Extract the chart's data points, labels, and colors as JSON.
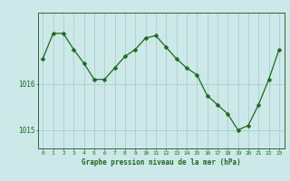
{
  "x": [
    0,
    1,
    2,
    3,
    4,
    5,
    6,
    7,
    8,
    9,
    10,
    11,
    12,
    13,
    14,
    15,
    16,
    17,
    18,
    19,
    20,
    21,
    22,
    23
  ],
  "y": [
    1016.55,
    1017.1,
    1017.1,
    1016.75,
    1016.45,
    1016.1,
    1016.1,
    1016.35,
    1016.6,
    1016.75,
    1017.0,
    1017.05,
    1016.8,
    1016.55,
    1016.35,
    1016.2,
    1015.75,
    1015.55,
    1015.35,
    1015.0,
    1015.1,
    1015.55,
    1016.1,
    1016.75
  ],
  "line_color": "#1a6b1a",
  "marker_color": "#1a6b1a",
  "bg_color": "#cce8e8",
  "grid_color": "#aacece",
  "axis_color": "#336633",
  "label_color": "#1a6b1a",
  "xlabel": "Graphe pression niveau de la mer (hPa)",
  "ylim_min": 1014.6,
  "ylim_max": 1017.55,
  "yticks": [
    1015,
    1016
  ],
  "xticks": [
    0,
    1,
    2,
    3,
    4,
    5,
    6,
    7,
    8,
    9,
    10,
    11,
    12,
    13,
    14,
    15,
    16,
    17,
    18,
    19,
    20,
    21,
    22,
    23
  ]
}
